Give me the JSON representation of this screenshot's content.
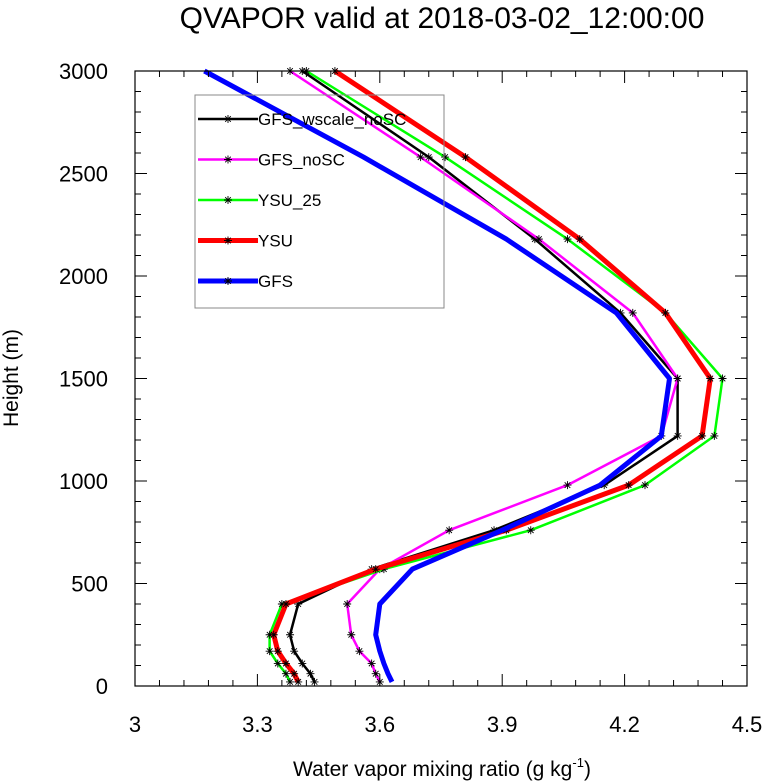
{
  "chart_data": {
    "type": "line",
    "title": "QVAPOR valid at 2018-03-02_12:00:00",
    "xlabel_main": "Water vapor mixing ratio (g kg",
    "xlabel_sup": "-1",
    "xlabel_tail": ")",
    "ylabel": "Height (m)",
    "xlim": [
      3.0,
      4.5
    ],
    "ylim": [
      0,
      3000
    ],
    "xticks": [
      3.0,
      3.3,
      3.6,
      3.9,
      4.2,
      4.5
    ],
    "xtick_labels": [
      "3",
      "3.3",
      "3.6",
      "3.9",
      "4.2",
      "4.5"
    ],
    "yticks": [
      0,
      500,
      1000,
      1500,
      2000,
      2500,
      3000
    ],
    "ytick_labels": [
      "0",
      "500",
      "1000",
      "1500",
      "2000",
      "2500",
      "3000"
    ],
    "legend_position": "top-left",
    "grid": false,
    "series": [
      {
        "name": "GFS_wscale_noSC",
        "color": "#000000",
        "width": 2.5,
        "marker": "asterisk",
        "y": [
          20,
          60,
          110,
          170,
          250,
          400,
          570,
          760,
          980,
          1220,
          1500,
          1820,
          2180,
          2580,
          3000
        ],
        "x": [
          3.44,
          3.43,
          3.41,
          3.39,
          3.38,
          3.4,
          3.58,
          3.88,
          4.15,
          4.33,
          4.33,
          4.19,
          3.98,
          3.72,
          3.41
        ]
      },
      {
        "name": "GFS_noSC",
        "color": "#ff00ff",
        "width": 2.5,
        "marker": "asterisk",
        "y": [
          20,
          60,
          110,
          170,
          250,
          400,
          570,
          760,
          980,
          1220,
          1500,
          1820,
          2180,
          2580,
          3000
        ],
        "x": [
          3.6,
          3.59,
          3.58,
          3.55,
          3.53,
          3.52,
          3.6,
          3.77,
          4.06,
          4.29,
          4.33,
          4.22,
          3.99,
          3.7,
          3.38
        ]
      },
      {
        "name": "YSU_25",
        "color": "#00ff00",
        "width": 2.5,
        "marker": "asterisk",
        "y": [
          20,
          60,
          110,
          170,
          250,
          400,
          570,
          760,
          980,
          1220,
          1500,
          1820,
          2180,
          2580,
          3000
        ],
        "x": [
          3.38,
          3.37,
          3.35,
          3.33,
          3.33,
          3.36,
          3.61,
          3.97,
          4.25,
          4.42,
          4.44,
          4.3,
          4.06,
          3.76,
          3.42
        ]
      },
      {
        "name": "YSU",
        "color": "#ff0000",
        "width": 5,
        "marker": "asterisk",
        "y": [
          20,
          60,
          110,
          170,
          250,
          400,
          570,
          760,
          980,
          1220,
          1500,
          1820,
          2180,
          2580,
          3000
        ],
        "x": [
          3.4,
          3.39,
          3.37,
          3.35,
          3.34,
          3.37,
          3.59,
          3.91,
          4.21,
          4.39,
          4.41,
          4.3,
          4.09,
          3.81,
          3.49
        ]
      },
      {
        "name": "GFS",
        "color": "#0000ff",
        "width": 5,
        "marker": "none",
        "y": [
          20,
          60,
          110,
          170,
          250,
          400,
          570,
          760,
          980,
          1220,
          1500,
          1820,
          2180,
          2580,
          3000
        ],
        "x": [
          3.63,
          3.62,
          3.61,
          3.6,
          3.59,
          3.6,
          3.68,
          3.9,
          4.14,
          4.29,
          4.31,
          4.18,
          3.91,
          3.56,
          3.17
        ]
      }
    ]
  }
}
